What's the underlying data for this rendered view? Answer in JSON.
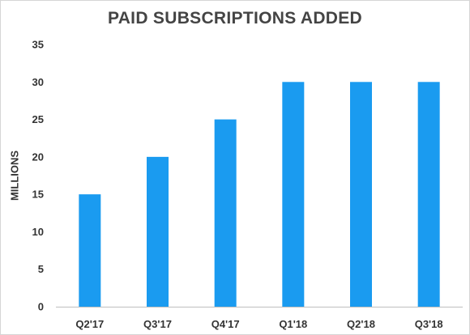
{
  "chart_data": {
    "type": "bar",
    "title": "PAID SUBSCRIPTIONS ADDED",
    "xlabel": "",
    "ylabel": "MILLIONS",
    "categories": [
      "Q2'17",
      "Q3'17",
      "Q4'17",
      "Q1'18",
      "Q2'18",
      "Q3'18"
    ],
    "values": [
      15,
      20,
      25,
      30,
      30,
      30
    ],
    "ylim": [
      0,
      35
    ],
    "yticks": [
      "0",
      "5",
      "10",
      "15",
      "20",
      "25",
      "30",
      "35"
    ],
    "grid": false,
    "legend": "none",
    "bar_color": "#1a9bf0",
    "axis_color": "#bfbfbf"
  }
}
